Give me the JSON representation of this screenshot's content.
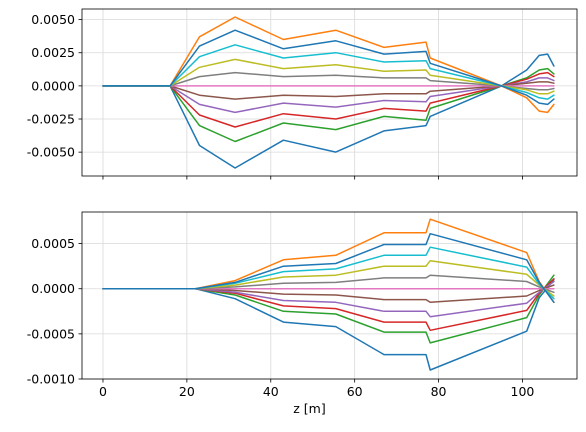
{
  "chart_data": [
    {
      "type": "line",
      "title": "",
      "xlabel": "",
      "ylabel": "",
      "xlim": [
        -5,
        113
      ],
      "ylim": [
        -0.0068,
        0.0058
      ],
      "grid": true,
      "xticks": [
        "",
        "",
        "",
        "",
        "",
        ""
      ],
      "xtick_values": [
        0,
        20,
        40,
        60,
        80,
        100
      ],
      "yticks": [
        "-0.0050",
        "-0.0025",
        "0.0000",
        "0.0025",
        "0.0050"
      ],
      "ytick_values": [
        -0.005,
        -0.0025,
        0,
        0.0025,
        0.005
      ],
      "x": [
        0,
        16,
        23,
        31.5,
        43,
        55.5,
        67,
        77,
        78,
        95,
        101,
        104,
        106,
        107.5
      ],
      "series": [
        {
          "color": "#1f77b4",
          "values": [
            0,
            0,
            -0.0045,
            -0.0062,
            -0.0041,
            -0.005,
            -0.0034,
            -0.003,
            -0.0023,
            0,
            0.0012,
            0.0023,
            0.0024,
            0.0015
          ]
        },
        {
          "color": "#ff7f0e",
          "values": [
            0,
            0,
            0.0037,
            0.0052,
            0.0035,
            0.0042,
            0.0029,
            0.0033,
            0.0021,
            0,
            -0.0009,
            -0.0019,
            -0.002,
            -0.0014
          ]
        },
        {
          "color": "#2ca02c",
          "values": [
            0,
            0,
            -0.003,
            -0.0042,
            -0.0028,
            -0.0033,
            -0.0023,
            -0.0026,
            -0.0017,
            0,
            0.0006,
            0.0012,
            0.0013,
            0.0009
          ]
        },
        {
          "color": "#d62728",
          "values": [
            0,
            0,
            -0.0022,
            -0.0031,
            -0.0021,
            -0.0025,
            -0.0017,
            -0.0019,
            -0.0013,
            0,
            0.0005,
            0.0009,
            0.001,
            0.0007
          ]
        },
        {
          "color": "#9467bd",
          "values": [
            0,
            0,
            -0.0014,
            -0.002,
            -0.0013,
            -0.0016,
            -0.0011,
            -0.0012,
            -0.0008,
            0,
            0.0003,
            0.0006,
            0.0006,
            0.0004
          ]
        },
        {
          "color": "#8c564b",
          "values": [
            0,
            0,
            -0.0007,
            -0.001,
            -0.0007,
            -0.0008,
            -0.0006,
            -0.0006,
            -0.0004,
            0,
            0.0002,
            0.0003,
            0.0003,
            0.0002
          ]
        },
        {
          "color": "#e377c2",
          "values": [
            0,
            0,
            0,
            0,
            0,
            0,
            0,
            0,
            0,
            0,
            0,
            0,
            0,
            0
          ]
        },
        {
          "color": "#7f7f7f",
          "values": [
            0,
            0,
            0.0007,
            0.001,
            0.0007,
            0.0008,
            0.0006,
            0.0006,
            0.0004,
            0,
            -0.0002,
            -0.0003,
            -0.0003,
            -0.0002
          ]
        },
        {
          "color": "#bcbd22",
          "values": [
            0,
            0,
            0.0014,
            0.002,
            0.0013,
            0.0016,
            0.0011,
            0.0012,
            0.0008,
            0,
            -0.0003,
            -0.0006,
            -0.0006,
            -0.0004
          ]
        },
        {
          "color": "#17becf",
          "values": [
            0,
            0,
            0.0022,
            0.0031,
            0.0021,
            0.0025,
            0.0018,
            0.0019,
            0.0013,
            0,
            -0.0005,
            -0.0009,
            -0.001,
            -0.0007
          ]
        },
        {
          "color": "#1f77b4",
          "values": [
            0,
            0,
            0.003,
            0.0042,
            0.0028,
            0.0034,
            0.0024,
            0.0026,
            0.0017,
            0,
            -0.0007,
            -0.0013,
            -0.0014,
            -0.001
          ]
        }
      ]
    },
    {
      "type": "line",
      "title": "",
      "xlabel": "z [m]",
      "ylabel": "",
      "xlim": [
        -5,
        113
      ],
      "ylim": [
        -0.001,
        0.00085
      ],
      "grid": true,
      "xticks": [
        "0",
        "20",
        "40",
        "60",
        "80",
        "100"
      ],
      "xtick_values": [
        0,
        20,
        40,
        60,
        80,
        100
      ],
      "yticks": [
        "-0.0010",
        "-0.0005",
        "0.0000",
        "0.0005"
      ],
      "ytick_values": [
        -0.001,
        -0.0005,
        0,
        0.0005
      ],
      "x": [
        0,
        16,
        22,
        31.5,
        43,
        55.5,
        67,
        77,
        78,
        101,
        104,
        107.5
      ],
      "series": [
        {
          "color": "#1f77b4",
          "values": [
            0,
            0,
            0,
            -0.00011,
            -0.00037,
            -0.00042,
            -0.00073,
            -0.00073,
            -0.0009,
            -0.00047,
            -0.0001,
            0.0001
          ]
        },
        {
          "color": "#ff7f0e",
          "values": [
            0,
            0,
            0,
            9e-05,
            0.00032,
            0.00037,
            0.00062,
            0.00062,
            0.00077,
            0.0004,
            8e-05,
            -0.00015
          ]
        },
        {
          "color": "#2ca02c",
          "values": [
            0,
            0,
            0,
            -7e-05,
            -0.00025,
            -0.00028,
            -0.00048,
            -0.00048,
            -0.0006,
            -0.00032,
            -7e-05,
            0.00015
          ]
        },
        {
          "color": "#d62728",
          "values": [
            0,
            0,
            0,
            -5e-05,
            -0.00019,
            -0.00022,
            -0.00037,
            -0.00037,
            -0.00046,
            -0.00024,
            -5e-05,
            0.00011
          ]
        },
        {
          "color": "#9467bd",
          "values": [
            0,
            0,
            0,
            -4e-05,
            -0.00013,
            -0.00015,
            -0.00025,
            -0.00025,
            -0.00031,
            -0.00016,
            -4e-05,
            8e-05
          ]
        },
        {
          "color": "#8c564b",
          "values": [
            0,
            0,
            0,
            -2e-05,
            -6e-05,
            -7e-05,
            -0.00012,
            -0.00012,
            -0.00015,
            -8e-05,
            -2e-05,
            4e-05
          ]
        },
        {
          "color": "#e377c2",
          "values": [
            0,
            0,
            0,
            0,
            0,
            0,
            0,
            0,
            0,
            0,
            0,
            0
          ]
        },
        {
          "color": "#7f7f7f",
          "values": [
            0,
            0,
            0,
            2e-05,
            6e-05,
            7e-05,
            0.00012,
            0.00012,
            0.00015,
            8e-05,
            2e-05,
            -4e-05
          ]
        },
        {
          "color": "#bcbd22",
          "values": [
            0,
            0,
            0,
            4e-05,
            0.00013,
            0.00015,
            0.00025,
            0.00025,
            0.00031,
            0.00016,
            4e-05,
            -8e-05
          ]
        },
        {
          "color": "#17becf",
          "values": [
            0,
            0,
            0,
            6e-05,
            0.00019,
            0.00022,
            0.00037,
            0.00037,
            0.00046,
            0.00024,
            5e-05,
            -0.00011
          ]
        },
        {
          "color": "#1f77b4",
          "values": [
            0,
            0,
            0,
            7e-05,
            0.00025,
            0.00028,
            0.00049,
            0.00049,
            0.00061,
            0.00032,
            7e-05,
            -0.00015
          ]
        }
      ]
    }
  ]
}
